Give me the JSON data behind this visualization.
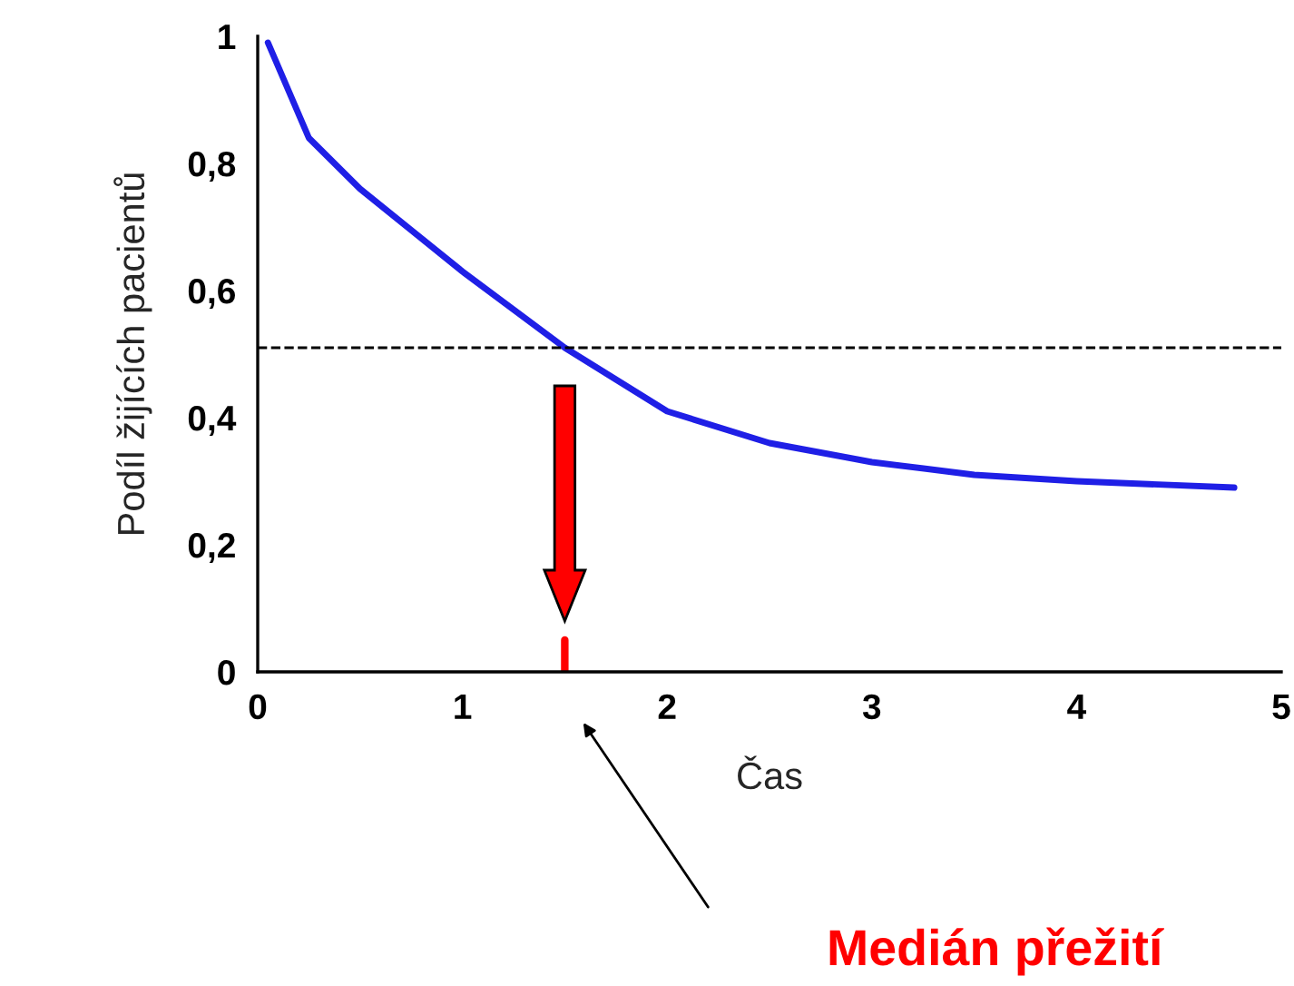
{
  "chart_data": {
    "type": "line",
    "xlabel": "Čas",
    "ylabel": "Podíl žijících pacientů",
    "x": [
      0.05,
      0.25,
      0.5,
      1.0,
      1.5,
      2.0,
      2.5,
      3.0,
      3.5,
      4.0,
      4.77
    ],
    "series": [
      {
        "color": "#1f1fe6",
        "values": [
          0.99,
          0.84,
          0.76,
          0.63,
          0.51,
          0.41,
          0.36,
          0.33,
          0.31,
          0.3,
          0.29
        ]
      }
    ],
    "xlim": [
      0,
      5
    ],
    "xticks": [
      0,
      1,
      2,
      3,
      4,
      5
    ],
    "ylim": [
      0,
      1
    ],
    "yticks": [
      0,
      {
        "value": 0.2,
        "label": "0,2"
      },
      {
        "value": 0.4,
        "label": "0,4"
      },
      {
        "value": 0.6,
        "label": "0,6"
      },
      {
        "value": 0.8,
        "label": "0,8"
      },
      1
    ],
    "ref_lines": [
      {
        "axis": "y",
        "value": 0.51,
        "color": "#000000",
        "line_style": "dashed"
      }
    ],
    "annotations": [
      "Medián přežití"
    ],
    "grid": false,
    "legend": false,
    "marker": "none",
    "line_style": "solid"
  }
}
